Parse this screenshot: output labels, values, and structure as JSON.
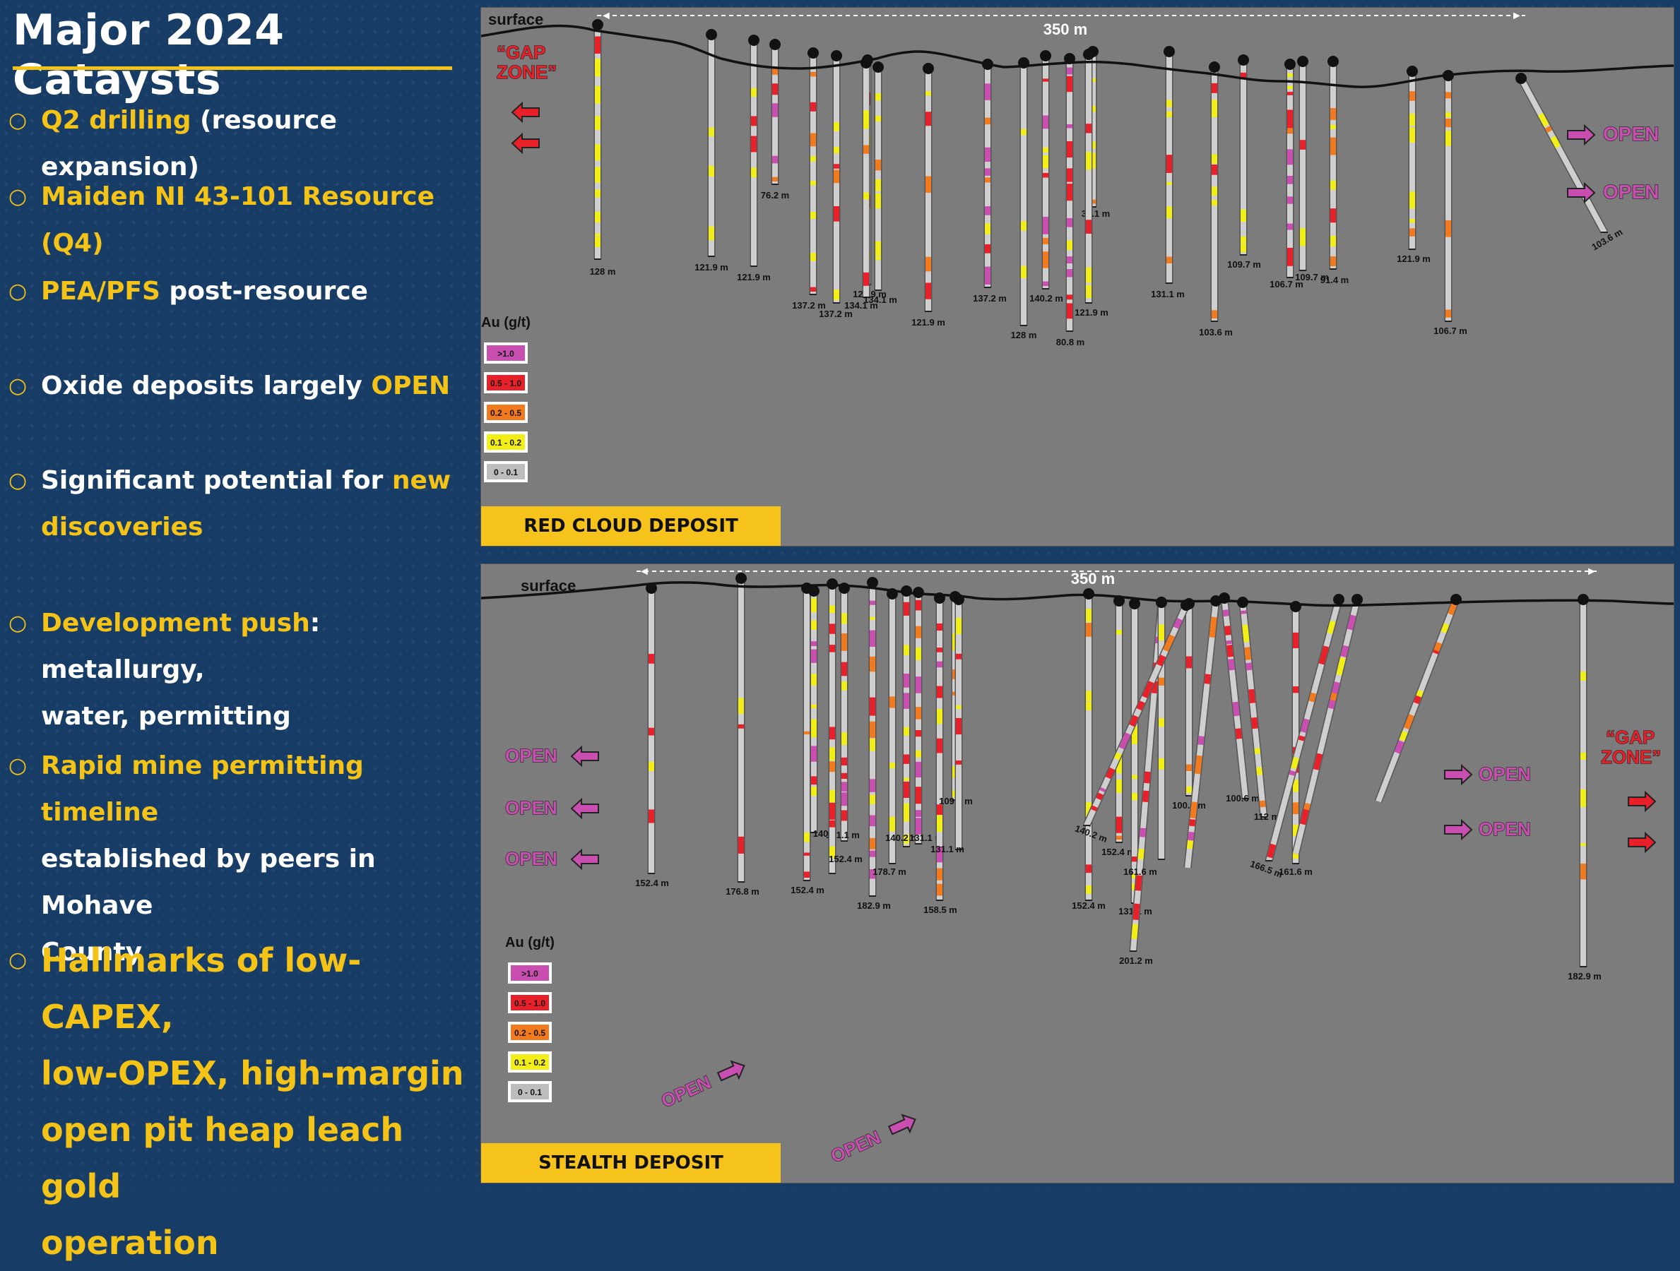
{
  "title": "Major 2024 Cataysts",
  "bullets": [
    {
      "hl": "Q2 drilling",
      "rest": " (resource expansion)"
    },
    {
      "hl": "Maiden NI 43-101 Resource (Q4)",
      "rest": ""
    },
    {
      "hl": "PEA/PFS",
      "rest": " post-resource"
    },
    {
      "pre": "Oxide deposits largely ",
      "hl": "OPEN"
    },
    {
      "pre": "Significant potential for ",
      "hl": "new",
      "line2": "discoveries"
    },
    {
      "hl": "Development push",
      "rest": ": metallurgy,",
      "line2w": "water, permitting"
    },
    {
      "hl": "Rapid mine permitting timeline",
      "line2w": "established by peers in Mohave",
      "line3w": "County"
    },
    {
      "lines": [
        "Hallmarks of low-CAPEX,",
        "low-OPEX, high-margin",
        "open pit heap leach gold",
        "operation"
      ]
    }
  ],
  "legend": {
    "title": "Au (g/t)",
    "items": [
      {
        "label": ">1.0",
        "color": "#c84fb0"
      },
      {
        "label": "0.5 - 1.0",
        "color": "#e8202a"
      },
      {
        "label": "0.2 - 0.5",
        "color": "#f27a1e"
      },
      {
        "label": "0.1 - 0.2",
        "color": "#f2ee17"
      },
      {
        "label": "0 - 0.1",
        "color": "#bdbdbd"
      }
    ]
  },
  "top": {
    "deposit_label": "RED CLOUD DEPOSIT",
    "surface": "surface",
    "scale": "350 m",
    "gap_zone": "“GAP ZONE”",
    "open": "OPEN",
    "holes": [
      {
        "depth": "128 m"
      },
      {
        "depth": "121.9 m"
      },
      {
        "depth": "121.9 m"
      },
      {
        "depth": "76.2 m"
      },
      {
        "depth": "137.2 m"
      },
      {
        "depth": "137.2 m"
      },
      {
        "depth": "121.9 m"
      },
      {
        "depth": "134.1 m"
      },
      {
        "depth": "134.1 m"
      },
      {
        "depth": "121.9 m"
      },
      {
        "depth": "137.2 m"
      },
      {
        "depth": "128 m"
      },
      {
        "depth": "140.2 m"
      },
      {
        "depth": "80.8 m"
      },
      {
        "depth": "34.1 m"
      },
      {
        "depth": "121.9 m"
      },
      {
        "depth": "131.1 m"
      },
      {
        "depth": "103.6 m"
      },
      {
        "depth": "109.7 m"
      },
      {
        "depth": "106.7 m"
      },
      {
        "depth": "109.7 m"
      },
      {
        "depth": "91.4 m"
      },
      {
        "depth": "121.9 m"
      },
      {
        "depth": "106.7 m"
      },
      {
        "depth": "103.6 m"
      }
    ]
  },
  "bottom": {
    "deposit_label": "STEALTH DEPOSIT",
    "surface": "surface",
    "scale": "350 m",
    "gap_zone": "“GAP ZONE”",
    "open": "OPEN",
    "holes": [
      {
        "depth": "152.4 m"
      },
      {
        "depth": "176.8 m"
      },
      {
        "depth": "152.4 m"
      },
      {
        "depth": "140.2"
      },
      {
        "depth": "131.1 m"
      },
      {
        "depth": "152.4 m"
      },
      {
        "depth": "182.9 m"
      },
      {
        "depth": "178.7 m"
      },
      {
        "depth": "140.2 m"
      },
      {
        "depth": "131.1 m"
      },
      {
        "depth": "158.5 m"
      },
      {
        "depth": "109.7 m"
      },
      {
        "depth": "131.1 m"
      },
      {
        "depth": "152.4 m"
      },
      {
        "depth": "152.4 m"
      },
      {
        "depth": "131.1 m"
      },
      {
        "depth": "201.2 m"
      },
      {
        "depth": "161.6 m"
      },
      {
        "depth": "100.6 m"
      },
      {
        "depth": "140.2 m"
      },
      {
        "depth": "100.6 m"
      },
      {
        "depth": "112 m"
      },
      {
        "depth": "161.6 m"
      },
      {
        "depth": "166.5 m"
      },
      {
        "depth": "182.9 m"
      }
    ]
  }
}
